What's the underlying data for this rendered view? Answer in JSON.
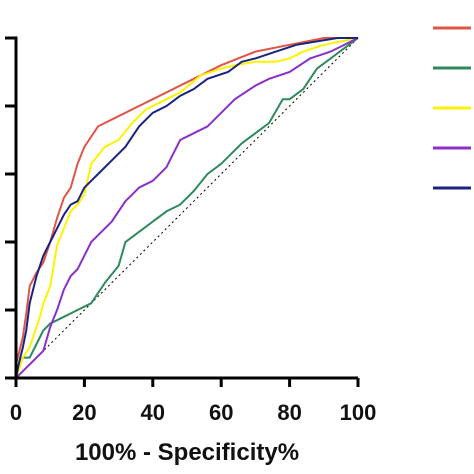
{
  "chart_data": {
    "type": "line",
    "title": "",
    "xlabel": "100% - Specificity%",
    "ylabel": "",
    "xlim": [
      0,
      100
    ],
    "ylim": [
      0,
      100
    ],
    "x_ticks": [
      "0",
      "20",
      "40",
      "60",
      "80",
      "100"
    ],
    "y_ticks": [
      0,
      20,
      40,
      60,
      80,
      100
    ],
    "grid": false,
    "legend": "right",
    "reference_line": {
      "style": "dotted",
      "color": "#000000",
      "points": [
        [
          0,
          0
        ],
        [
          100,
          100
        ]
      ]
    },
    "series": [
      {
        "color": "#e0554a",
        "points": [
          [
            0,
            0
          ],
          [
            0,
            4
          ],
          [
            2,
            12
          ],
          [
            3,
            19
          ],
          [
            4,
            27
          ],
          [
            6,
            31
          ],
          [
            8,
            34
          ],
          [
            10,
            40
          ],
          [
            12,
            47
          ],
          [
            14,
            53
          ],
          [
            16,
            56
          ],
          [
            18,
            63
          ],
          [
            20,
            68
          ],
          [
            24,
            74
          ],
          [
            30,
            77
          ],
          [
            40,
            82
          ],
          [
            50,
            87
          ],
          [
            60,
            92
          ],
          [
            70,
            96
          ],
          [
            80,
            98
          ],
          [
            90,
            100
          ],
          [
            100,
            100
          ]
        ]
      },
      {
        "color": "#2e8a5c",
        "points": [
          [
            0,
            0
          ],
          [
            1,
            4
          ],
          [
            2,
            6
          ],
          [
            4,
            6
          ],
          [
            6,
            10
          ],
          [
            8,
            14
          ],
          [
            10,
            16
          ],
          [
            14,
            18
          ],
          [
            18,
            20
          ],
          [
            22,
            22
          ],
          [
            26,
            28
          ],
          [
            30,
            33
          ],
          [
            32,
            40
          ],
          [
            36,
            43
          ],
          [
            40,
            46
          ],
          [
            44,
            49
          ],
          [
            48,
            51
          ],
          [
            52,
            55
          ],
          [
            56,
            60
          ],
          [
            60,
            63
          ],
          [
            66,
            69
          ],
          [
            70,
            72
          ],
          [
            74,
            75
          ],
          [
            78,
            82
          ],
          [
            80,
            82
          ],
          [
            84,
            85
          ],
          [
            88,
            91
          ],
          [
            92,
            94
          ],
          [
            96,
            97
          ],
          [
            100,
            100
          ]
        ]
      },
      {
        "color": "#fff200",
        "points": [
          [
            0,
            0
          ],
          [
            1,
            3
          ],
          [
            2,
            6
          ],
          [
            4,
            9
          ],
          [
            6,
            15
          ],
          [
            7,
            18
          ],
          [
            8,
            22
          ],
          [
            10,
            27
          ],
          [
            12,
            39
          ],
          [
            14,
            44
          ],
          [
            16,
            49
          ],
          [
            18,
            51
          ],
          [
            20,
            54
          ],
          [
            22,
            63
          ],
          [
            26,
            68
          ],
          [
            30,
            70
          ],
          [
            34,
            75
          ],
          [
            38,
            79
          ],
          [
            44,
            82
          ],
          [
            48,
            84
          ],
          [
            54,
            89
          ],
          [
            60,
            91
          ],
          [
            64,
            92
          ],
          [
            70,
            93
          ],
          [
            76,
            93
          ],
          [
            80,
            94
          ],
          [
            84,
            96
          ],
          [
            90,
            98
          ],
          [
            100,
            100
          ]
        ]
      },
      {
        "color": "#8b2fc9",
        "points": [
          [
            0,
            0
          ],
          [
            2,
            2
          ],
          [
            4,
            4
          ],
          [
            8,
            8
          ],
          [
            10,
            15
          ],
          [
            12,
            20
          ],
          [
            14,
            26
          ],
          [
            16,
            30
          ],
          [
            18,
            32
          ],
          [
            20,
            36
          ],
          [
            22,
            40
          ],
          [
            24,
            42
          ],
          [
            28,
            46
          ],
          [
            32,
            52
          ],
          [
            36,
            56
          ],
          [
            40,
            58
          ],
          [
            44,
            62
          ],
          [
            48,
            70
          ],
          [
            52,
            72
          ],
          [
            56,
            74
          ],
          [
            60,
            78
          ],
          [
            64,
            82
          ],
          [
            70,
            86
          ],
          [
            74,
            88
          ],
          [
            80,
            90
          ],
          [
            86,
            94
          ],
          [
            92,
            96
          ],
          [
            100,
            100
          ]
        ]
      },
      {
        "color": "#1a237e",
        "points": [
          [
            0,
            0
          ],
          [
            1,
            5
          ],
          [
            2,
            9
          ],
          [
            3,
            14
          ],
          [
            4,
            22
          ],
          [
            6,
            30
          ],
          [
            8,
            36
          ],
          [
            10,
            40
          ],
          [
            12,
            44
          ],
          [
            14,
            48
          ],
          [
            16,
            51
          ],
          [
            18,
            52
          ],
          [
            20,
            56
          ],
          [
            22,
            58
          ],
          [
            24,
            60
          ],
          [
            28,
            64
          ],
          [
            32,
            68
          ],
          [
            36,
            74
          ],
          [
            40,
            78
          ],
          [
            44,
            80
          ],
          [
            48,
            83
          ],
          [
            52,
            85
          ],
          [
            56,
            88
          ],
          [
            62,
            90
          ],
          [
            66,
            93
          ],
          [
            70,
            94
          ],
          [
            76,
            96
          ],
          [
            82,
            98
          ],
          [
            88,
            99
          ],
          [
            94,
            100
          ],
          [
            100,
            100
          ]
        ]
      }
    ]
  }
}
